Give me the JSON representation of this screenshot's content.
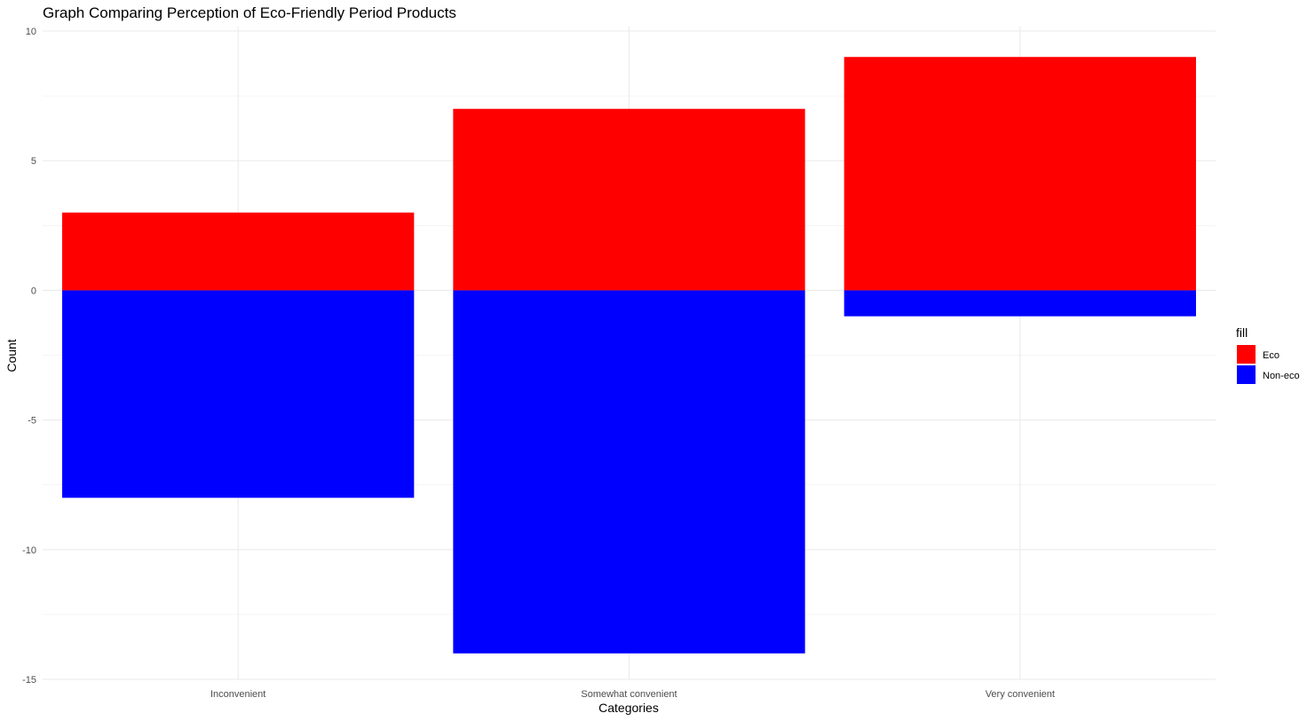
{
  "chart_data": {
    "type": "bar",
    "stacked": true,
    "title": "Graph Comparing Perception of Eco-Friendly Period Products",
    "xlabel": "Categories",
    "ylabel": "Count",
    "categories": [
      "Inconvenient",
      "Somewhat convenient",
      "Very convenient"
    ],
    "series": [
      {
        "name": "Eco",
        "values": [
          3,
          7,
          9
        ],
        "color": "#ff0000"
      },
      {
        "name": "Non-eco",
        "values": [
          -8,
          -14,
          -1
        ],
        "color": "#0000ff"
      }
    ],
    "ylim": [
      -15,
      10
    ],
    "yticks": [
      -15,
      -10,
      -5,
      0,
      5,
      10
    ],
    "grid": true,
    "legend": {
      "title": "fill",
      "placement": "right"
    }
  }
}
